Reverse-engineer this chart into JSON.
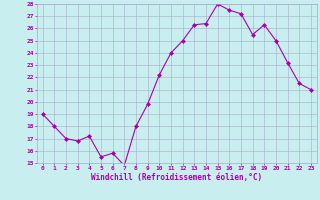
{
  "x": [
    0,
    1,
    2,
    3,
    4,
    5,
    6,
    7,
    8,
    9,
    10,
    11,
    12,
    13,
    14,
    15,
    16,
    17,
    18,
    19,
    20,
    21,
    22,
    23
  ],
  "y": [
    19.0,
    18.0,
    17.0,
    16.8,
    17.2,
    15.5,
    15.8,
    14.8,
    18.0,
    19.8,
    22.2,
    24.0,
    25.0,
    26.3,
    26.4,
    28.0,
    27.5,
    27.2,
    25.5,
    26.3,
    25.0,
    23.2,
    21.5,
    21.0
  ],
  "line_color": "#aa00aa",
  "marker": "D",
  "marker_size": 2,
  "bg_color": "#c8eef0",
  "grid_color": "#aaaacc",
  "xlabel": "Windchill (Refroidissement éolien,°C)",
  "xlabel_color": "#aa00aa",
  "tick_color": "#aa00aa",
  "ylim": [
    15,
    28
  ],
  "xlim": [
    -0.5,
    23.5
  ],
  "yticks": [
    15,
    16,
    17,
    18,
    19,
    20,
    21,
    22,
    23,
    24,
    25,
    26,
    27,
    28
  ],
  "xticks": [
    0,
    1,
    2,
    3,
    4,
    5,
    6,
    7,
    8,
    9,
    10,
    11,
    12,
    13,
    14,
    15,
    16,
    17,
    18,
    19,
    20,
    21,
    22,
    23
  ]
}
